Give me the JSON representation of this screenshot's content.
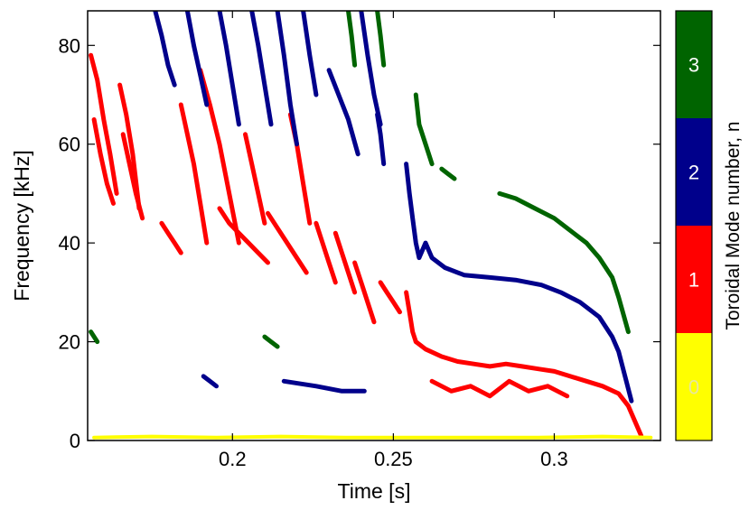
{
  "chart_data": {
    "type": "scatter",
    "title": "",
    "xlabel": "Time [s]",
    "ylabel": "Frequency [kHz]",
    "xlim": [
      0.155,
      0.333
    ],
    "ylim": [
      0,
      87
    ],
    "xticks": [
      {
        "value": 0.2,
        "label": "0.2"
      },
      {
        "value": 0.25,
        "label": "0.25"
      },
      {
        "value": 0.3,
        "label": "0.3"
      }
    ],
    "yticks": [
      {
        "value": 0,
        "label": "0"
      },
      {
        "value": 20,
        "label": "20"
      },
      {
        "value": 40,
        "label": "40"
      },
      {
        "value": 60,
        "label": "60"
      },
      {
        "value": 80,
        "label": "80"
      }
    ],
    "grid": false,
    "colorbar": {
      "title": "Toroidal Mode number, n",
      "levels": [
        {
          "n": "0",
          "label": "0",
          "color": "#ffff00",
          "label_color": "#e6e6a0"
        },
        {
          "n": "1",
          "label": "1",
          "color": "#ff0000",
          "label_color": "#ffffff"
        },
        {
          "n": "2",
          "label": "2",
          "color": "#00008b",
          "label_color": "#ffffff"
        },
        {
          "n": "3",
          "label": "3",
          "color": "#006400",
          "label_color": "#ffffff"
        }
      ]
    },
    "series": [
      {
        "n": "1",
        "color": "#ff0000",
        "tracks": [
          {
            "x": [
              0.156,
              0.158,
              0.16,
              0.162,
              0.164
            ],
            "y": [
              78,
              73,
              65,
              58,
              50
            ]
          },
          {
            "x": [
              0.157,
              0.159,
              0.161,
              0.163
            ],
            "y": [
              65,
              58,
              52,
              48
            ]
          },
          {
            "x": [
              0.165,
              0.167,
              0.169,
              0.171
            ],
            "y": [
              72,
              66,
              58,
              47
            ]
          },
          {
            "x": [
              0.166,
              0.168,
              0.17,
              0.172
            ],
            "y": [
              62,
              56,
              50,
              45
            ]
          },
          {
            "x": [
              0.178,
              0.18,
              0.182,
              0.184
            ],
            "y": [
              44,
              42,
              40,
              38
            ]
          },
          {
            "x": [
              0.184,
              0.186,
              0.188,
              0.19,
              0.192
            ],
            "y": [
              68,
              62,
              56,
              48,
              40
            ]
          },
          {
            "x": [
              0.19,
              0.193,
              0.196,
              0.199,
              0.202
            ],
            "y": [
              75,
              68,
              60,
              50,
              40
            ]
          },
          {
            "x": [
              0.196,
              0.199,
              0.202,
              0.205,
              0.208,
              0.211
            ],
            "y": [
              47,
              44,
              42,
              40,
              38,
              36
            ]
          },
          {
            "x": [
              0.204,
              0.206,
              0.208,
              0.21
            ],
            "y": [
              62,
              56,
              50,
              44
            ]
          },
          {
            "x": [
              0.211,
              0.214,
              0.217,
              0.22,
              0.223
            ],
            "y": [
              46,
              43,
              40,
              37,
              34
            ]
          },
          {
            "x": [
              0.218,
              0.22,
              0.222,
              0.224
            ],
            "y": [
              66,
              60,
              52,
              44
            ]
          },
          {
            "x": [
              0.226,
              0.228,
              0.23,
              0.232
            ],
            "y": [
              44,
              40,
              36,
              32
            ]
          },
          {
            "x": [
              0.232,
              0.234,
              0.236,
              0.238
            ],
            "y": [
              42,
              38,
              34,
              30
            ]
          },
          {
            "x": [
              0.238,
              0.24,
              0.242,
              0.244
            ],
            "y": [
              36,
              32,
              28,
              24
            ]
          },
          {
            "x": [
              0.246,
              0.248,
              0.25,
              0.252
            ],
            "y": [
              32,
              30,
              28,
              26
            ]
          },
          {
            "x": [
              0.254,
              0.255,
              0.256,
              0.257
            ],
            "y": [
              30,
              26,
              22,
              20
            ]
          },
          {
            "x": [
              0.257,
              0.26,
              0.265,
              0.27,
              0.275,
              0.28,
              0.285,
              0.29,
              0.295,
              0.3,
              0.305,
              0.31,
              0.315,
              0.32,
              0.323,
              0.325,
              0.327
            ],
            "y": [
              20,
              18.5,
              17,
              16,
              15.5,
              15,
              15.5,
              15,
              14.5,
              14,
              13,
              12,
              11,
              9.5,
              7,
              4,
              1
            ]
          },
          {
            "x": [
              0.262,
              0.268,
              0.274,
              0.28,
              0.286,
              0.292,
              0.298,
              0.304
            ],
            "y": [
              12,
              10,
              11,
              9,
              12,
              10,
              11,
              9
            ]
          }
        ]
      },
      {
        "n": "2",
        "color": "#00008b",
        "tracks": [
          {
            "x": [
              0.176,
              0.178,
              0.18,
              0.182
            ],
            "y": [
              87,
              82,
              76,
              72
            ]
          },
          {
            "x": [
              0.186,
              0.188,
              0.19,
              0.192
            ],
            "y": [
              87,
              80,
              74,
              68
            ]
          },
          {
            "x": [
              0.196,
              0.198,
              0.2,
              0.202
            ],
            "y": [
              87,
              80,
              72,
              64
            ]
          },
          {
            "x": [
              0.206,
              0.208,
              0.21,
              0.212
            ],
            "y": [
              87,
              80,
              72,
              64
            ]
          },
          {
            "x": [
              0.214,
              0.216,
              0.218,
              0.22
            ],
            "y": [
              87,
              78,
              68,
              60
            ]
          },
          {
            "x": [
              0.222,
              0.224,
              0.226
            ],
            "y": [
              87,
              78,
              70
            ]
          },
          {
            "x": [
              0.23,
              0.233,
              0.236,
              0.239
            ],
            "y": [
              75,
              70,
              65,
              58
            ]
          },
          {
            "x": [
              0.24,
              0.242,
              0.244,
              0.246
            ],
            "y": [
              87,
              78,
              70,
              64
            ]
          },
          {
            "x": [
              0.245,
              0.246,
              0.247
            ],
            "y": [
              66,
              62,
              56
            ]
          },
          {
            "x": [
              0.254,
              0.255,
              0.256,
              0.257,
              0.258,
              0.26,
              0.262,
              0.266,
              0.272,
              0.28,
              0.288,
              0.296,
              0.302,
              0.308,
              0.314,
              0.318,
              0.32,
              0.322,
              0.324
            ],
            "y": [
              56,
              50,
              45,
              40,
              37,
              40,
              37,
              35,
              33.5,
              33,
              32.5,
              31.5,
              30,
              28,
              25,
              21,
              18,
              13,
              8
            ]
          },
          {
            "x": [
              0.191,
              0.193,
              0.195
            ],
            "y": [
              13,
              12,
              11
            ]
          },
          {
            "x": [
              0.216,
              0.226,
              0.234,
              0.241
            ],
            "y": [
              12,
              11,
              10,
              10
            ]
          }
        ]
      },
      {
        "n": "3",
        "color": "#006400",
        "tracks": [
          {
            "x": [
              0.236,
              0.237,
              0.238
            ],
            "y": [
              87,
              82,
              76
            ]
          },
          {
            "x": [
              0.245,
              0.246,
              0.247
            ],
            "y": [
              87,
              82,
              76
            ]
          },
          {
            "x": [
              0.257,
              0.258,
              0.26,
              0.262
            ],
            "y": [
              70,
              64,
              60,
              56
            ]
          },
          {
            "x": [
              0.265,
              0.267,
              0.269
            ],
            "y": [
              55,
              54,
              53
            ]
          },
          {
            "x": [
              0.283,
              0.288,
              0.294,
              0.3,
              0.306,
              0.31,
              0.314,
              0.318,
              0.32,
              0.323
            ],
            "y": [
              50,
              49,
              47,
              45,
              42,
              40,
              37,
              33,
              29,
              22
            ]
          },
          {
            "x": [
              0.21,
              0.212,
              0.214
            ],
            "y": [
              21,
              20,
              19
            ]
          },
          {
            "x": [
              0.156,
              0.158
            ],
            "y": [
              22,
              20
            ]
          }
        ]
      },
      {
        "n": "0",
        "color": "#ffff00",
        "tracks": [
          {
            "x": [
              0.157,
              0.175,
              0.195,
              0.215,
              0.235,
              0.255,
              0.275,
              0.295,
              0.315,
              0.33
            ],
            "y": [
              0.6,
              0.8,
              0.6,
              0.8,
              0.6,
              0.6,
              0.6,
              0.6,
              0.8,
              0.6
            ]
          }
        ]
      }
    ]
  }
}
